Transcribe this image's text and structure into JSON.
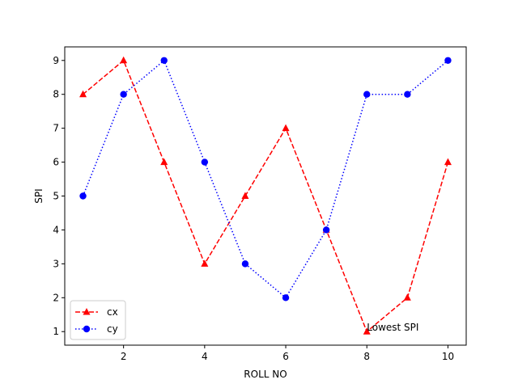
{
  "chart_data": {
    "type": "line",
    "title": "",
    "xlabel": "ROLL NO",
    "ylabel": "SPI",
    "xlim": [
      0.55,
      10.45
    ],
    "ylim": [
      0.6,
      9.4
    ],
    "xticks": [
      2,
      4,
      6,
      8,
      10
    ],
    "yticks": [
      1,
      2,
      3,
      4,
      5,
      6,
      7,
      8,
      9
    ],
    "grid": false,
    "legend_position": "lower-left",
    "series": [
      {
        "name": "cx",
        "x": [
          1,
          2,
          3,
          4,
          5,
          6,
          7,
          8,
          9,
          10
        ],
        "y": [
          8,
          9,
          6,
          3,
          5,
          7,
          4,
          1,
          2,
          6
        ],
        "color": "#ff0000",
        "linestyle": "dashed",
        "marker": "triangle"
      },
      {
        "name": "cy",
        "x": [
          1,
          2,
          3,
          4,
          5,
          6,
          7,
          8,
          9,
          10
        ],
        "y": [
          5,
          8,
          9,
          6,
          3,
          2,
          4,
          8,
          8,
          9
        ],
        "color": "#0000ff",
        "linestyle": "dotted",
        "marker": "circle"
      }
    ],
    "annotations": [
      {
        "text": "Lowest SPI",
        "x": 8,
        "y": 1
      }
    ]
  }
}
